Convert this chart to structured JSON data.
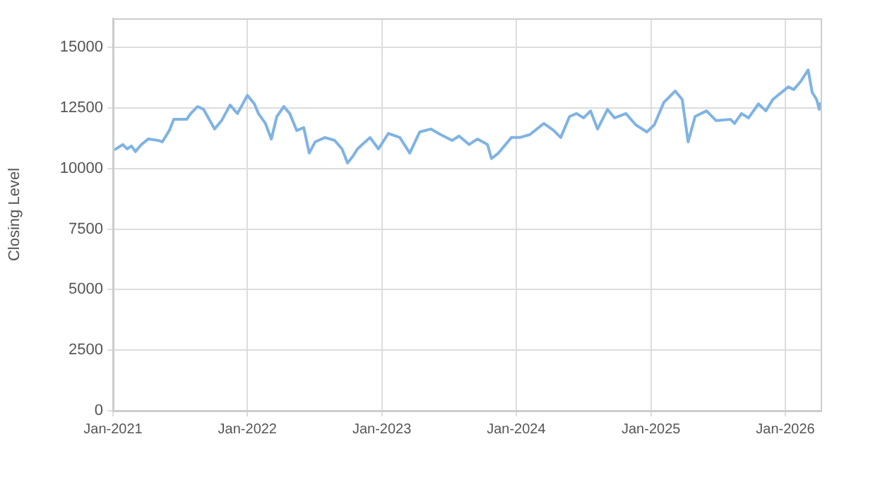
{
  "chart_data": {
    "type": "line",
    "ylabel": "Closing Level",
    "x": [
      "2021-01-01",
      "2021-01-09",
      "2021-01-28",
      "2021-02-08",
      "2021-02-20",
      "2021-03-03",
      "2021-03-19",
      "2021-04-07",
      "2021-05-04",
      "2021-05-15",
      "2021-06-03",
      "2021-06-15",
      "2021-07-20",
      "2021-07-31",
      "2021-08-19",
      "2021-09-04",
      "2021-10-04",
      "2021-10-23",
      "2021-11-15",
      "2021-12-05",
      "2022-01-01",
      "2022-01-20",
      "2022-01-31",
      "2022-02-19",
      "2022-03-07",
      "2022-03-22",
      "2022-04-10",
      "2022-04-26",
      "2022-05-15",
      "2022-06-03",
      "2022-06-18",
      "2022-07-04",
      "2022-07-31",
      "2022-08-26",
      "2022-09-15",
      "2022-09-30",
      "2022-10-15",
      "2022-10-27",
      "2022-11-30",
      "2022-12-23",
      "2023-01-19",
      "2023-02-19",
      "2023-03-18",
      "2023-04-14",
      "2023-05-14",
      "2023-06-10",
      "2023-07-11",
      "2023-07-30",
      "2023-08-26",
      "2023-09-18",
      "2023-10-15",
      "2023-10-26",
      "2023-11-14",
      "2023-12-19",
      "2024-01-11",
      "2024-02-07",
      "2024-03-16",
      "2024-04-12",
      "2024-05-01",
      "2024-05-25",
      "2024-06-13",
      "2024-07-02",
      "2024-07-21",
      "2024-08-09",
      "2024-09-05",
      "2024-09-24",
      "2024-10-25",
      "2024-11-21",
      "2024-12-21",
      "2025-01-10",
      "2025-02-05",
      "2025-03-08",
      "2025-03-27",
      "2025-04-12",
      "2025-05-01",
      "2025-06-01",
      "2025-06-27",
      "2025-08-05",
      "2025-08-16",
      "2025-09-04",
      "2025-09-23",
      "2025-10-20",
      "2025-11-09",
      "2025-11-28",
      "2026-01-09",
      "2026-01-24",
      "2026-02-12",
      "2026-03-04",
      "2026-03-15",
      "2026-03-27",
      "2026-04-03",
      "2026-04-07"
    ],
    "series": [
      {
        "color": "#7fb3e3",
        "values": [
          10760,
          10810,
          10990,
          10810,
          10930,
          10700,
          10990,
          11220,
          11160,
          11100,
          11570,
          12030,
          12030,
          12270,
          12560,
          12440,
          11630,
          11980,
          12620,
          12270,
          13020,
          12670,
          12270,
          11860,
          11220,
          12150,
          12560,
          12270,
          11570,
          11690,
          10640,
          11100,
          11280,
          11160,
          10810,
          10230,
          10520,
          10810,
          11280,
          10810,
          11450,
          11280,
          10640,
          11510,
          11630,
          11400,
          11160,
          11340,
          10990,
          11220,
          10990,
          10410,
          10640,
          11280,
          11280,
          11400,
          11860,
          11570,
          11280,
          12150,
          12270,
          12090,
          12380,
          11630,
          12440,
          12090,
          12270,
          11800,
          11510,
          11800,
          12730,
          13200,
          12850,
          11100,
          12150,
          12380,
          11980,
          12030,
          11860,
          12270,
          12090,
          12670,
          12380,
          12850,
          13370,
          13260,
          13600,
          14070,
          13140,
          12850,
          12440,
          12730
        ]
      }
    ],
    "xlim": [
      "2021-01-01",
      "2026-04-07"
    ],
    "xticks": [
      {
        "value": "2021-01-01",
        "label": "Jan-2021"
      },
      {
        "value": "2022-01-01",
        "label": "Jan-2022"
      },
      {
        "value": "2023-01-01",
        "label": "Jan-2023"
      },
      {
        "value": "2024-01-01",
        "label": "Jan-2024"
      },
      {
        "value": "2025-01-01",
        "label": "Jan-2025"
      },
      {
        "value": "2026-01-01",
        "label": "Jan-2026"
      }
    ],
    "ylim": [
      0,
      16200
    ],
    "yticks": [
      0,
      2500,
      5000,
      7500,
      10000,
      12500,
      15000
    ],
    "grid": true,
    "legend": false,
    "marker": "none",
    "line_style": "solid"
  }
}
